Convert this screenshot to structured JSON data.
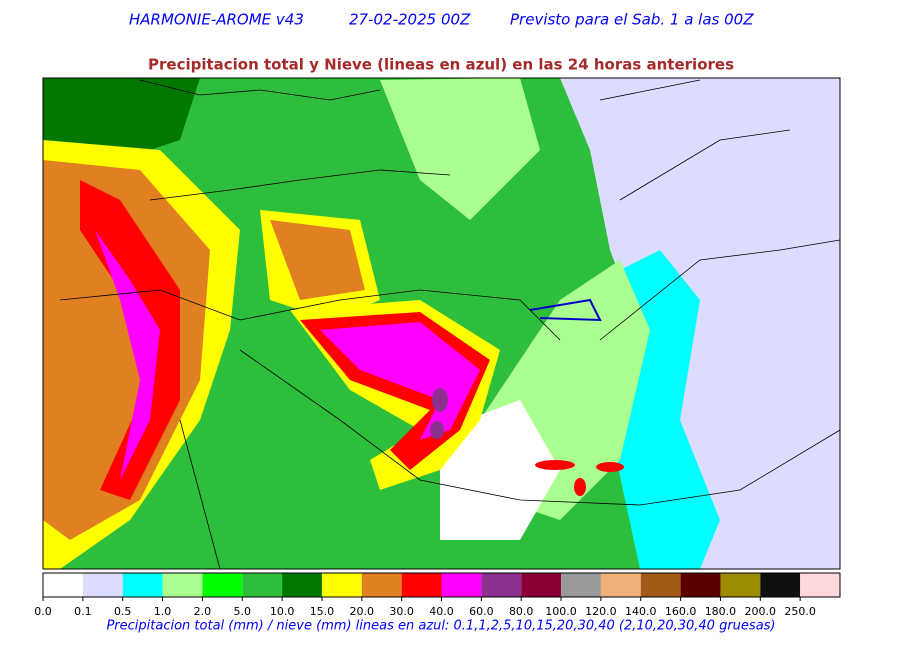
{
  "header": {
    "model": "HARMONIE-AROME v43",
    "run": "27-02-2025 00Z",
    "valid": "Previsto para el Sab. 1 a las 00Z",
    "title": "Precipitacion total y Nieve (lineas en azul) en las 24 horas anteriores"
  },
  "legend": {
    "labels": [
      "0.0",
      "0.1",
      "0.5",
      "1.0",
      "2.0",
      "5.0",
      "10.0",
      "15.0",
      "20.0",
      "30.0",
      "40.0",
      "60.0",
      "80.0",
      "100.0",
      "120.0",
      "140.0",
      "160.0",
      "180.0",
      "200.0",
      "250.0"
    ],
    "colors": [
      "#ffffff",
      "#dcdcff",
      "#00ffff",
      "#aaff90",
      "#00ff00",
      "#2dbf3c",
      "#007800",
      "#ffff00",
      "#e08020",
      "#ff0000",
      "#ff00ff",
      "#8c3090",
      "#8b0035",
      "#999999",
      "#f0b07a",
      "#a05a14",
      "#5a0000",
      "#9c8c00",
      "#101010",
      "#ffd8dc"
    ],
    "caption": "Precipitacion total (mm) / nieve (mm) lineas en azul: 0.1,1,2,5,10,15,20,30,40  (2,10,20,30,40 gruesas)"
  }
}
